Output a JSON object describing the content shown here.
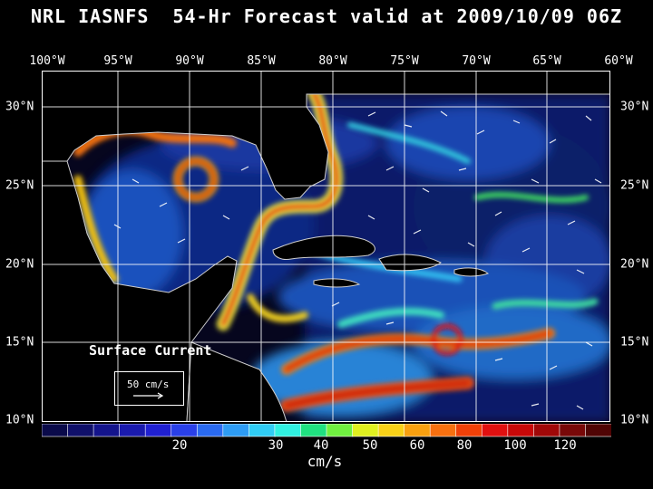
{
  "title": "NRL IASNFS  54-Hr Forecast valid at 2009/10/09 06Z",
  "longitude_labels": [
    "100°W",
    "95°W",
    "90°W",
    "85°W",
    "80°W",
    "75°W",
    "70°W",
    "65°W",
    "60°W"
  ],
  "latitude_labels": [
    "30°N",
    "25°N",
    "20°N",
    "15°N",
    "10°N"
  ],
  "colorbar": {
    "colors": [
      "#0a0a4a",
      "#10106a",
      "#14148c",
      "#1a1aae",
      "#2020d2",
      "#2a40e8",
      "#2a6af0",
      "#2e9cf4",
      "#30ccf4",
      "#30f0e0",
      "#20e080",
      "#70f040",
      "#e0f020",
      "#f8d018",
      "#f8a010",
      "#f87010",
      "#f04008",
      "#e01010",
      "#c80808",
      "#a00808",
      "#780808",
      "#500404"
    ],
    "tick_labels": [
      "20",
      "30",
      "40",
      "50",
      "60",
      "80",
      "100",
      "120"
    ],
    "unit": "cm/s"
  },
  "legend": {
    "title": "Surface Current",
    "vector_value": "50 cm/s"
  }
}
